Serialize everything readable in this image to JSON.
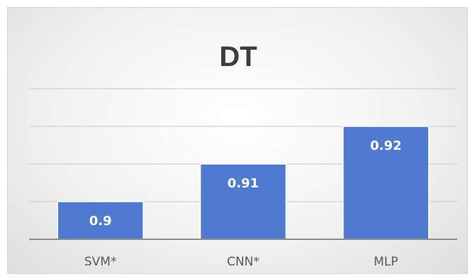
{
  "chart_data": {
    "type": "bar",
    "title": "DT",
    "categories": [
      "SVM*",
      "CNN*",
      "MLP"
    ],
    "values": [
      0.9,
      0.91,
      0.92
    ],
    "data_labels": [
      "0.9",
      "0.91",
      "0.92"
    ],
    "ylim": [
      0.89,
      0.93
    ],
    "grid_values": [
      0.9,
      0.91,
      0.92,
      0.93
    ],
    "grid": true,
    "legend": "none",
    "xlabel": "",
    "ylabel": "",
    "colors": {
      "bar": "#4f7ad0",
      "bar_edge": "#ffffff",
      "grid": "#d0d0d0",
      "axis": "#8c8c8c"
    }
  }
}
